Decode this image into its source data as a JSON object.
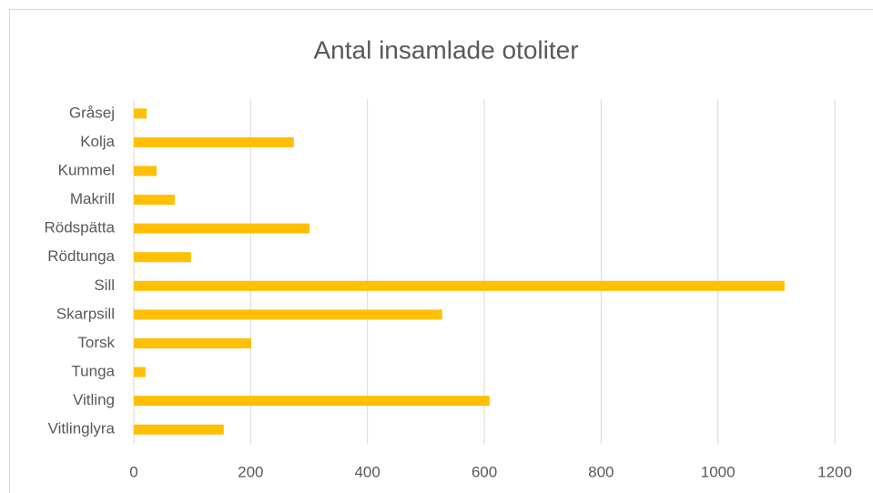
{
  "chart_data": {
    "type": "bar",
    "orientation": "horizontal",
    "title": "Antal insamlade otoliter",
    "categories": [
      "Gråsej",
      "Kolja",
      "Kummel",
      "Makrill",
      "Rödspätta",
      "Rödtunga",
      "Sill",
      "Skarpsill",
      "Torsk",
      "Tunga",
      "Vitling",
      "Vitlinglyra"
    ],
    "values": [
      22,
      274,
      39,
      70,
      301,
      98,
      1114,
      528,
      201,
      20,
      609,
      154
    ],
    "color": "#ffc000",
    "xlim": [
      0,
      1200
    ],
    "xticks": [
      0,
      200,
      400,
      600,
      800,
      1000,
      1200
    ],
    "grid": true
  }
}
